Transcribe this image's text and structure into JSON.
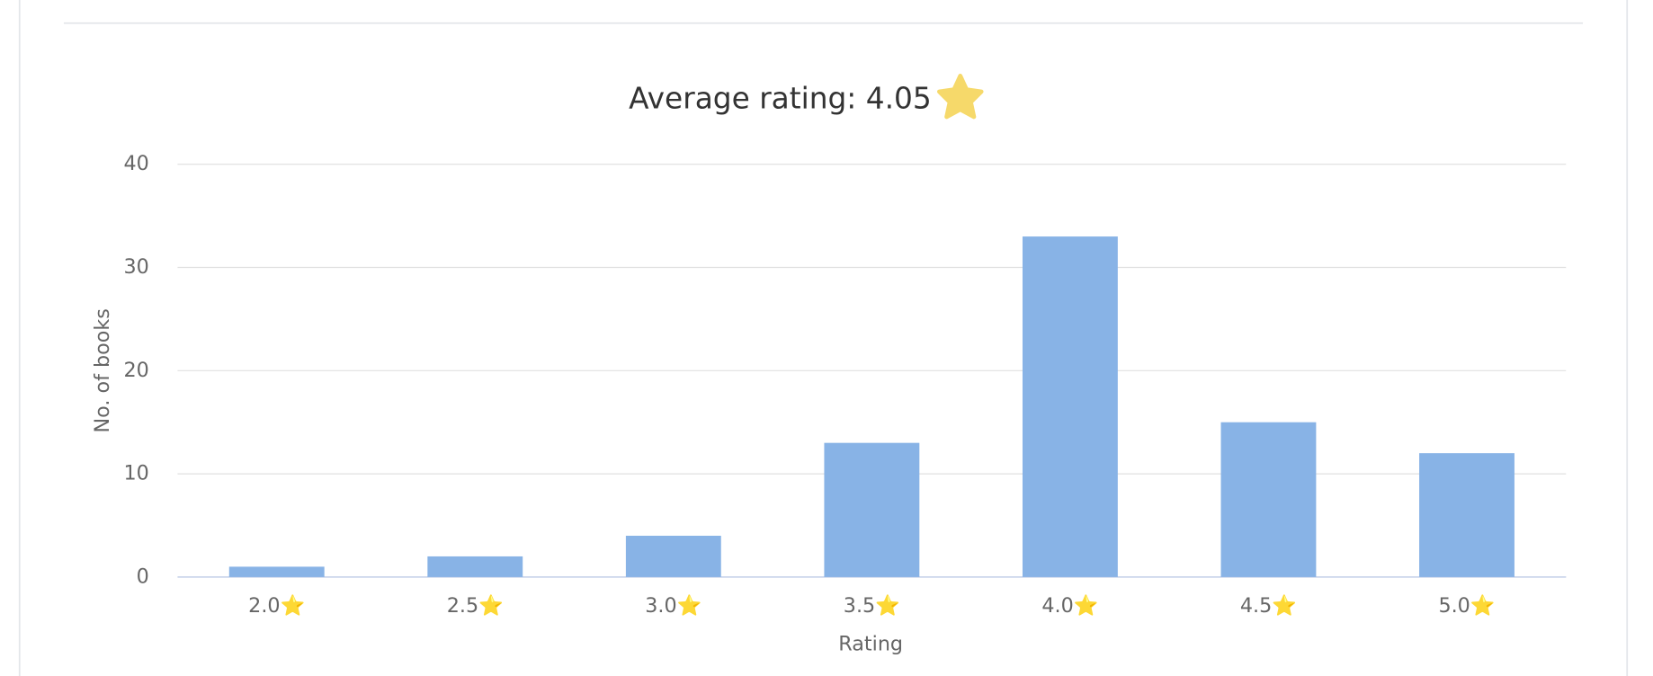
{
  "chart_data": {
    "type": "bar",
    "title": "Average rating: 4.05",
    "categories": [
      "2.0⭐",
      "2.5⭐",
      "3.0⭐",
      "3.5⭐",
      "4.0⭐",
      "4.5⭐",
      "5.0⭐"
    ],
    "values": [
      1,
      2,
      4,
      13,
      33,
      15,
      12
    ],
    "color": "#88b3e6",
    "x_label": "Rating",
    "y_label": "No. of books",
    "ylim": [
      0,
      40
    ],
    "yticks": [
      0,
      10,
      20,
      30,
      40
    ],
    "grid": true
  }
}
